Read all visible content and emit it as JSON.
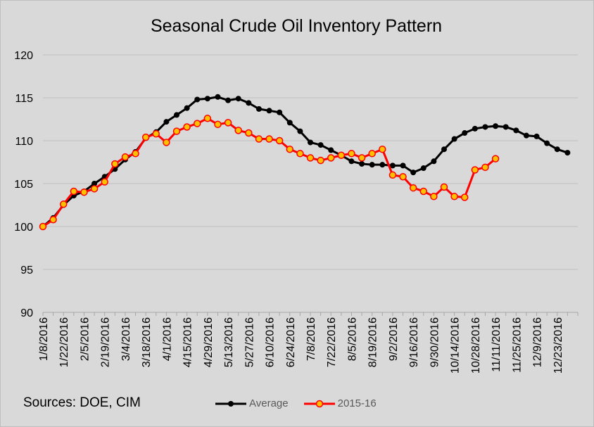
{
  "chart_data": {
    "type": "line",
    "title": "Seasonal Crude Oil Inventory Pattern",
    "xlabel": "",
    "ylabel": "",
    "ylim": [
      90,
      120
    ],
    "yticks": [
      "90",
      "95",
      "100",
      "105",
      "110",
      "115",
      "120"
    ],
    "x_tick_labels": [
      "1/8/2016",
      "1/22/2016",
      "2/5/2016",
      "2/19/2016",
      "3/4/2016",
      "3/18/2016",
      "4/1/2016",
      "4/15/2016",
      "4/29/2016",
      "5/13/2016",
      "5/27/2016",
      "6/10/2016",
      "6/24/2016",
      "7/8/2016",
      "7/22/2016",
      "8/5/2016",
      "8/19/2016",
      "9/2/2016",
      "9/16/2016",
      "9/30/2016",
      "10/14/2016",
      "10/28/2016",
      "11/11/2016",
      "11/25/2016",
      "12/9/2016",
      "12/23/2016"
    ],
    "grid": "horizontal",
    "legend_position": "bottom",
    "series": [
      {
        "name": "Average",
        "color": "#000000",
        "marker_color": "#000000",
        "values": [
          100.0,
          101.0,
          102.5,
          103.6,
          104.1,
          105.0,
          105.8,
          106.7,
          107.8,
          108.7,
          110.3,
          111.0,
          112.2,
          113.0,
          113.8,
          114.8,
          114.9,
          115.1,
          114.7,
          114.9,
          114.4,
          113.7,
          113.5,
          113.3,
          112.1,
          111.1,
          109.8,
          109.5,
          108.9,
          108.3,
          107.6,
          107.3,
          107.2,
          107.2,
          107.1,
          107.1,
          106.3,
          106.8,
          107.6,
          109.0,
          110.2,
          110.9,
          111.4,
          111.6,
          111.7,
          111.6,
          111.2,
          110.6,
          110.5,
          109.7,
          109.0,
          108.6
        ]
      },
      {
        "name": "2015-16",
        "color": "#ff0000",
        "marker_color": "#ffc000",
        "values": [
          100.0,
          100.8,
          102.6,
          104.1,
          104.0,
          104.4,
          105.2,
          107.3,
          108.1,
          108.5,
          110.4,
          110.8,
          109.8,
          111.1,
          111.6,
          112.0,
          112.6,
          111.9,
          112.1,
          111.2,
          110.9,
          110.2,
          110.2,
          110.0,
          109.0,
          108.5,
          108.0,
          107.7,
          108.0,
          108.3,
          108.5,
          108.0,
          108.5,
          109.0,
          106.0,
          105.8,
          104.5,
          104.1,
          103.5,
          104.6,
          103.5,
          103.4,
          106.6,
          106.9,
          107.9
        ]
      }
    ]
  },
  "footer": {
    "sources": "Sources:  DOE, CIM"
  }
}
